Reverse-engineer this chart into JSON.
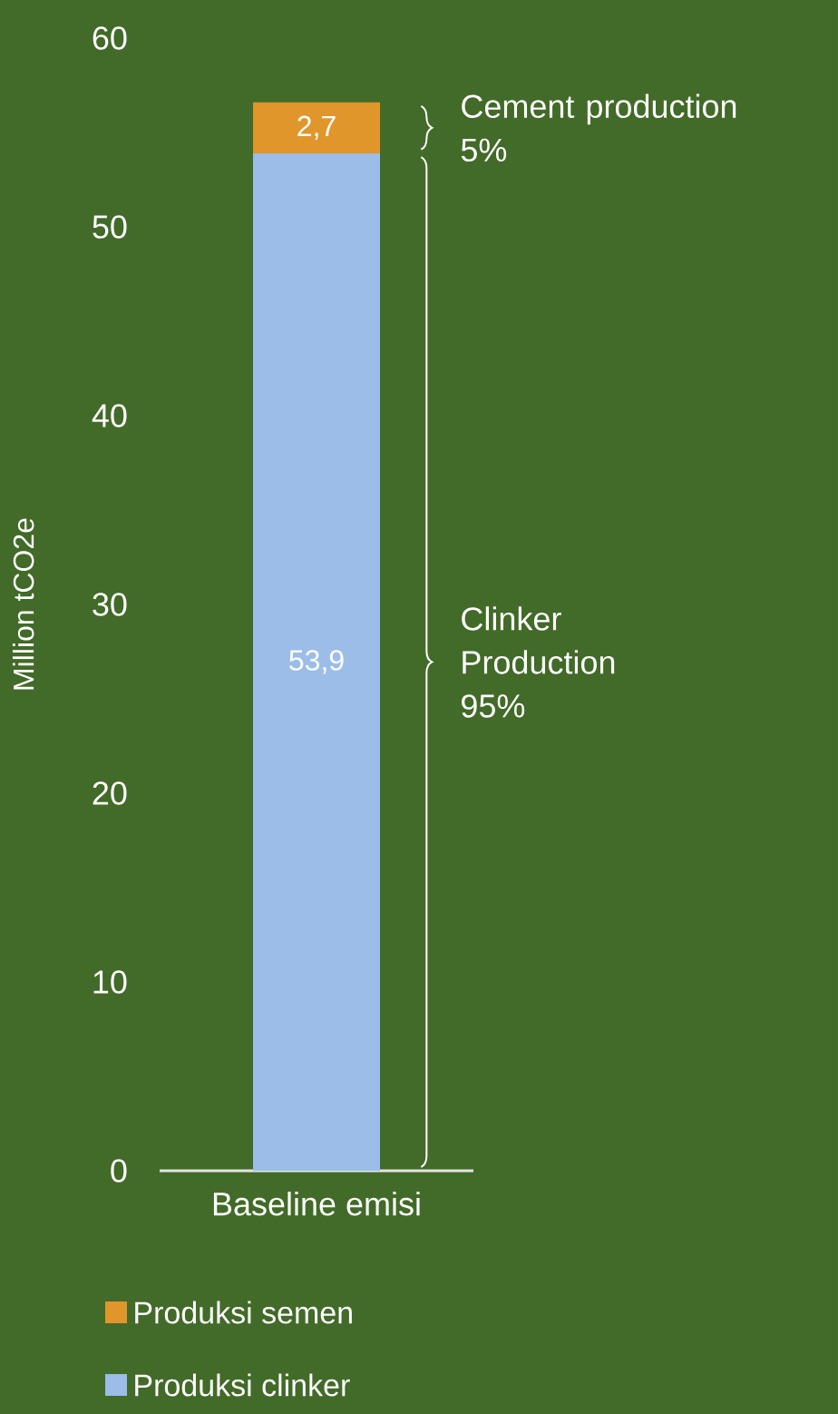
{
  "chart_data": {
    "type": "bar",
    "stacked": true,
    "ylabel": "Million tCO2e",
    "categories": [
      "Baseline emisi"
    ],
    "ylim": [
      0,
      60
    ],
    "yticks": [
      0,
      10,
      20,
      30,
      40,
      50,
      60
    ],
    "legend": "bottom",
    "series": [
      {
        "name": "Produksi clinker",
        "color": "#9bbde8",
        "values": [
          53.9
        ],
        "value_labels": [
          "53,9"
        ]
      },
      {
        "name": "Produksi semen",
        "color": "#e0962b",
        "values": [
          2.7
        ],
        "value_labels": [
          "2,7"
        ]
      }
    ],
    "annotations": [
      "Clinker Production 95%",
      "Cement production 5%"
    ]
  }
}
